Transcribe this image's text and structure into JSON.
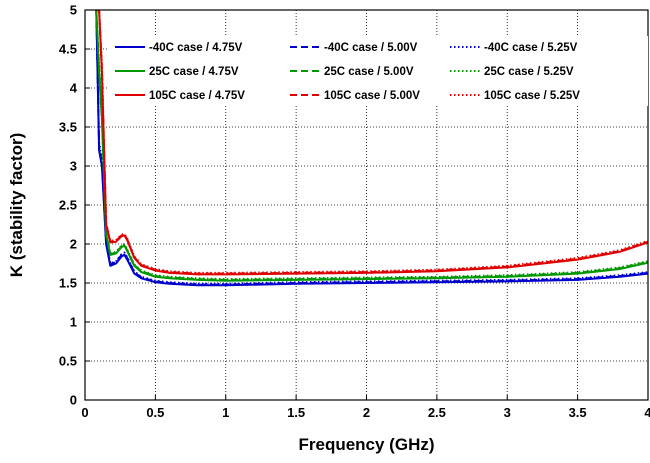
{
  "chart_data": {
    "type": "line",
    "title": "",
    "xlabel": "Frequency (GHz)",
    "ylabel": "K (stability factor)",
    "xlim": [
      0,
      4
    ],
    "ylim": [
      0,
      5
    ],
    "x_ticks": [
      0,
      0.5,
      1,
      1.5,
      2,
      2.5,
      3,
      3.5,
      4
    ],
    "x_tick_labels": [
      "0",
      "0.5",
      "1",
      "1.5",
      "2",
      "2.5",
      "3",
      "3.5",
      "4"
    ],
    "y_ticks": [
      0,
      0.5,
      1,
      1.5,
      2,
      2.5,
      3,
      3.5,
      4,
      4.5,
      5
    ],
    "y_tick_labels": [
      "0",
      "0.5",
      "1",
      "1.5",
      "2",
      "2.5",
      "3",
      "3.5",
      "4",
      "4.5",
      "5"
    ],
    "grid": true,
    "legend_position": "top-right",
    "series": [
      {
        "name": "-40C case / 4.75V",
        "color": "#0000cc",
        "dash": "solid",
        "x": [
          0.08,
          0.1,
          0.12,
          0.15,
          0.18,
          0.22,
          0.26,
          0.28,
          0.3,
          0.35,
          0.4,
          0.5,
          0.6,
          0.8,
          1.0,
          1.5,
          2.0,
          2.5,
          3.0,
          3.5,
          3.8,
          4.0
        ],
        "y": [
          5.0,
          3.2,
          3.0,
          2.0,
          1.72,
          1.75,
          1.84,
          1.86,
          1.8,
          1.62,
          1.56,
          1.51,
          1.49,
          1.47,
          1.47,
          1.49,
          1.5,
          1.51,
          1.52,
          1.54,
          1.58,
          1.62
        ]
      },
      {
        "name": "-40C case / 5.00V",
        "color": "#0000cc",
        "dash": "dashed",
        "x": [
          0.08,
          0.1,
          0.12,
          0.15,
          0.18,
          0.22,
          0.26,
          0.28,
          0.3,
          0.35,
          0.4,
          0.5,
          0.6,
          0.8,
          1.0,
          1.5,
          2.0,
          2.5,
          3.0,
          3.5,
          3.8,
          4.0
        ],
        "y": [
          5.0,
          3.25,
          3.05,
          2.02,
          1.74,
          1.77,
          1.86,
          1.88,
          1.82,
          1.64,
          1.57,
          1.52,
          1.5,
          1.48,
          1.48,
          1.5,
          1.51,
          1.52,
          1.53,
          1.55,
          1.59,
          1.63
        ]
      },
      {
        "name": "-40C case / 5.25V",
        "color": "#0000cc",
        "dash": "dotted",
        "x": [
          0.08,
          0.1,
          0.12,
          0.15,
          0.18,
          0.22,
          0.26,
          0.28,
          0.3,
          0.35,
          0.4,
          0.5,
          0.6,
          0.8,
          1.0,
          1.5,
          2.0,
          2.5,
          3.0,
          3.5,
          3.8,
          4.0
        ],
        "y": [
          5.0,
          3.3,
          3.08,
          2.04,
          1.75,
          1.78,
          1.87,
          1.89,
          1.83,
          1.65,
          1.58,
          1.53,
          1.51,
          1.49,
          1.49,
          1.51,
          1.52,
          1.53,
          1.54,
          1.56,
          1.6,
          1.64
        ]
      },
      {
        "name": "25C case / 4.75V",
        "color": "#009900",
        "dash": "solid",
        "x": [
          0.08,
          0.1,
          0.12,
          0.15,
          0.18,
          0.22,
          0.26,
          0.28,
          0.3,
          0.35,
          0.4,
          0.5,
          0.6,
          0.8,
          1.0,
          1.5,
          2.0,
          2.5,
          3.0,
          3.5,
          3.8,
          4.0
        ],
        "y": [
          5.0,
          4.2,
          3.6,
          2.12,
          1.86,
          1.88,
          1.96,
          1.98,
          1.91,
          1.72,
          1.64,
          1.58,
          1.56,
          1.54,
          1.53,
          1.54,
          1.55,
          1.56,
          1.58,
          1.62,
          1.68,
          1.76
        ]
      },
      {
        "name": "25C case / 5.00V",
        "color": "#009900",
        "dash": "dashed",
        "x": [
          0.08,
          0.1,
          0.12,
          0.15,
          0.18,
          0.22,
          0.26,
          0.28,
          0.3,
          0.35,
          0.4,
          0.5,
          0.6,
          0.8,
          1.0,
          1.5,
          2.0,
          2.5,
          3.0,
          3.5,
          3.8,
          4.0
        ],
        "y": [
          5.0,
          4.25,
          3.65,
          2.13,
          1.87,
          1.89,
          1.97,
          1.99,
          1.92,
          1.73,
          1.65,
          1.59,
          1.57,
          1.55,
          1.54,
          1.55,
          1.56,
          1.57,
          1.59,
          1.63,
          1.69,
          1.77
        ]
      },
      {
        "name": "25C case / 5.25V",
        "color": "#009900",
        "dash": "dotted",
        "x": [
          0.08,
          0.1,
          0.12,
          0.15,
          0.18,
          0.22,
          0.26,
          0.28,
          0.3,
          0.35,
          0.4,
          0.5,
          0.6,
          0.8,
          1.0,
          1.5,
          2.0,
          2.5,
          3.0,
          3.5,
          3.8,
          4.0
        ],
        "y": [
          5.0,
          4.3,
          3.7,
          2.14,
          1.88,
          1.9,
          1.98,
          2.0,
          1.93,
          1.74,
          1.66,
          1.6,
          1.58,
          1.56,
          1.55,
          1.56,
          1.57,
          1.58,
          1.6,
          1.64,
          1.7,
          1.78
        ]
      },
      {
        "name": "105C case / 4.75V",
        "color": "#e00000",
        "dash": "solid",
        "x": [
          0.08,
          0.1,
          0.12,
          0.15,
          0.18,
          0.22,
          0.26,
          0.28,
          0.3,
          0.35,
          0.4,
          0.5,
          0.6,
          0.8,
          1.0,
          1.5,
          2.0,
          2.5,
          3.0,
          3.5,
          3.8,
          4.0
        ],
        "y": [
          5.0,
          5.0,
          4.2,
          2.25,
          2.02,
          2.03,
          2.1,
          2.11,
          2.05,
          1.82,
          1.72,
          1.66,
          1.63,
          1.61,
          1.61,
          1.62,
          1.63,
          1.65,
          1.7,
          1.8,
          1.9,
          2.02
        ]
      },
      {
        "name": "105C case / 5.00V",
        "color": "#e00000",
        "dash": "dashed",
        "x": [
          0.08,
          0.1,
          0.12,
          0.15,
          0.18,
          0.22,
          0.26,
          0.28,
          0.3,
          0.35,
          0.4,
          0.5,
          0.6,
          0.8,
          1.0,
          1.5,
          2.0,
          2.5,
          3.0,
          3.5,
          3.8,
          4.0
        ],
        "y": [
          5.0,
          5.0,
          4.25,
          2.26,
          2.03,
          2.04,
          2.11,
          2.12,
          2.06,
          1.83,
          1.73,
          1.67,
          1.64,
          1.62,
          1.62,
          1.63,
          1.64,
          1.66,
          1.71,
          1.81,
          1.91,
          2.03
        ]
      },
      {
        "name": "105C case / 5.25V",
        "color": "#e00000",
        "dash": "dotted",
        "x": [
          0.08,
          0.1,
          0.12,
          0.15,
          0.18,
          0.22,
          0.26,
          0.28,
          0.3,
          0.35,
          0.4,
          0.5,
          0.6,
          0.8,
          1.0,
          1.5,
          2.0,
          2.5,
          3.0,
          3.5,
          3.8,
          4.0
        ],
        "y": [
          5.0,
          5.0,
          4.3,
          2.27,
          2.04,
          2.05,
          2.12,
          2.13,
          2.07,
          1.84,
          1.74,
          1.68,
          1.65,
          1.63,
          1.63,
          1.64,
          1.65,
          1.67,
          1.72,
          1.82,
          1.92,
          2.04
        ]
      }
    ]
  }
}
